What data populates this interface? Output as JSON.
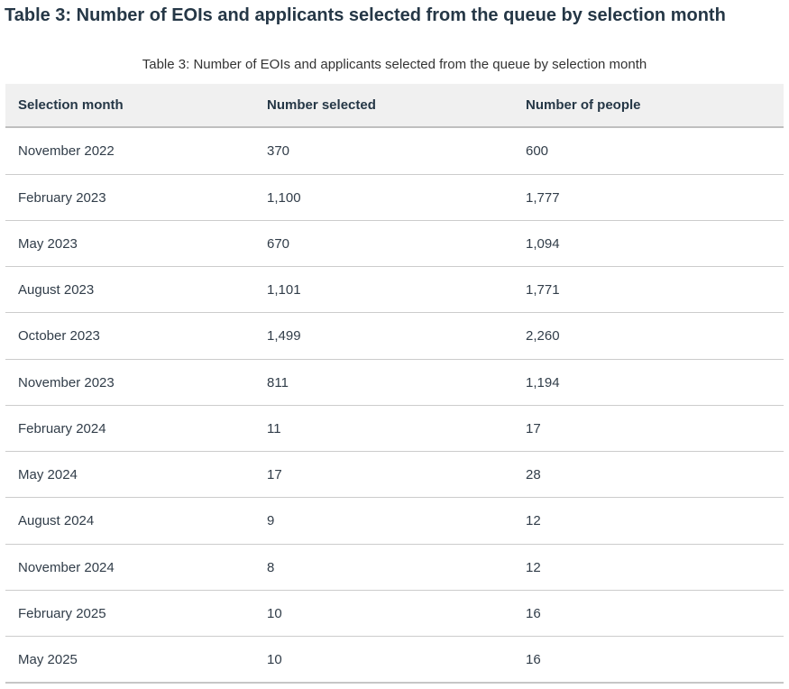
{
  "page_heading": "Table 3: Number of EOIs and applicants selected from the queue by selection month",
  "table": {
    "caption": "Table 3: Number of EOIs and applicants selected from the queue by selection month",
    "columns": [
      "Selection month",
      "Number selected",
      "Number of people"
    ],
    "rows": [
      {
        "month": "November 2022",
        "selected": "370",
        "people": "600"
      },
      {
        "month": "February 2023",
        "selected": "1,100",
        "people": "1,777"
      },
      {
        "month": "May 2023",
        "selected": "670",
        "people": "1,094"
      },
      {
        "month": "August 2023",
        "selected": "1,101",
        "people": "1,771"
      },
      {
        "month": "October 2023",
        "selected": "1,499",
        "people": "2,260"
      },
      {
        "month": "November 2023",
        "selected": "811",
        "people": "1,194"
      },
      {
        "month": "February 2024",
        "selected": "11",
        "people": "17"
      },
      {
        "month": "May 2024",
        "selected": "17",
        "people": "28"
      },
      {
        "month": "August 2024",
        "selected": "9",
        "people": "12"
      },
      {
        "month": "November 2024",
        "selected": "8",
        "people": "12"
      },
      {
        "month": "February 2025",
        "selected": "10",
        "people": "16"
      },
      {
        "month": "May 2025",
        "selected": "10",
        "people": "16"
      }
    ]
  },
  "colors": {
    "heading_text": "#253746",
    "body_text": "#313d49",
    "header_row_bg": "#f0f0f0",
    "row_divider": "#cccccc",
    "table_edge": "#bfbfbf"
  }
}
